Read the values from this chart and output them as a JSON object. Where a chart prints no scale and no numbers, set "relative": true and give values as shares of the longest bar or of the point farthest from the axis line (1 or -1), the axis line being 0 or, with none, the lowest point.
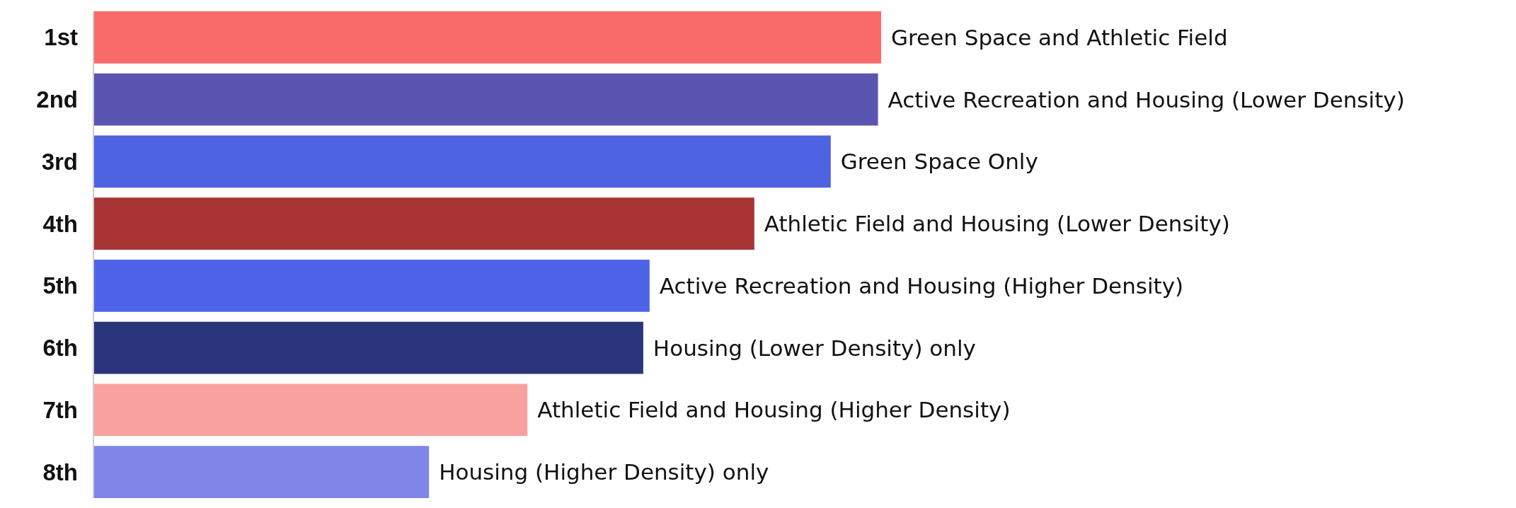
{
  "chart_data": {
    "type": "bar",
    "orientation": "horizontal",
    "relative": true,
    "categories": [
      "1st",
      "2nd",
      "3rd",
      "4th",
      "5th",
      "6th",
      "7th",
      "8th"
    ],
    "values": [
      1,
      0.996,
      0.936,
      0.839,
      0.706,
      0.698,
      0.551,
      0.426
    ],
    "colors": [
      "#f96b6b",
      "#5a55b0",
      "#4e63e2",
      "#a83434",
      "#4f63e8",
      "#2b357c",
      "#f8a1a1",
      "#7f86e8"
    ],
    "annotations": [
      {
        "text": "Green Space and Athletic Field",
        "x": 1,
        "y": "1st"
      },
      {
        "text": "Active Recreation and Housing (Lower Density)",
        "x": 0.996,
        "y": "2nd"
      },
      {
        "text": "Green Space Only",
        "x": 0.936,
        "y": "3rd"
      },
      {
        "text": "Athletic Field and Housing (Lower Density)",
        "x": 0.839,
        "y": "4th"
      },
      {
        "text": "Active Recreation and Housing (Higher Density)",
        "x": 0.706,
        "y": "5th"
      },
      {
        "text": "Housing (Lower Density) only",
        "x": 0.698,
        "y": "6th"
      },
      {
        "text": "Athletic Field and Housing (Higher Density)",
        "x": 0.551,
        "y": "7th"
      },
      {
        "text": "Housing (Higher Density) only",
        "x": 0.426,
        "y": "8th"
      }
    ]
  }
}
